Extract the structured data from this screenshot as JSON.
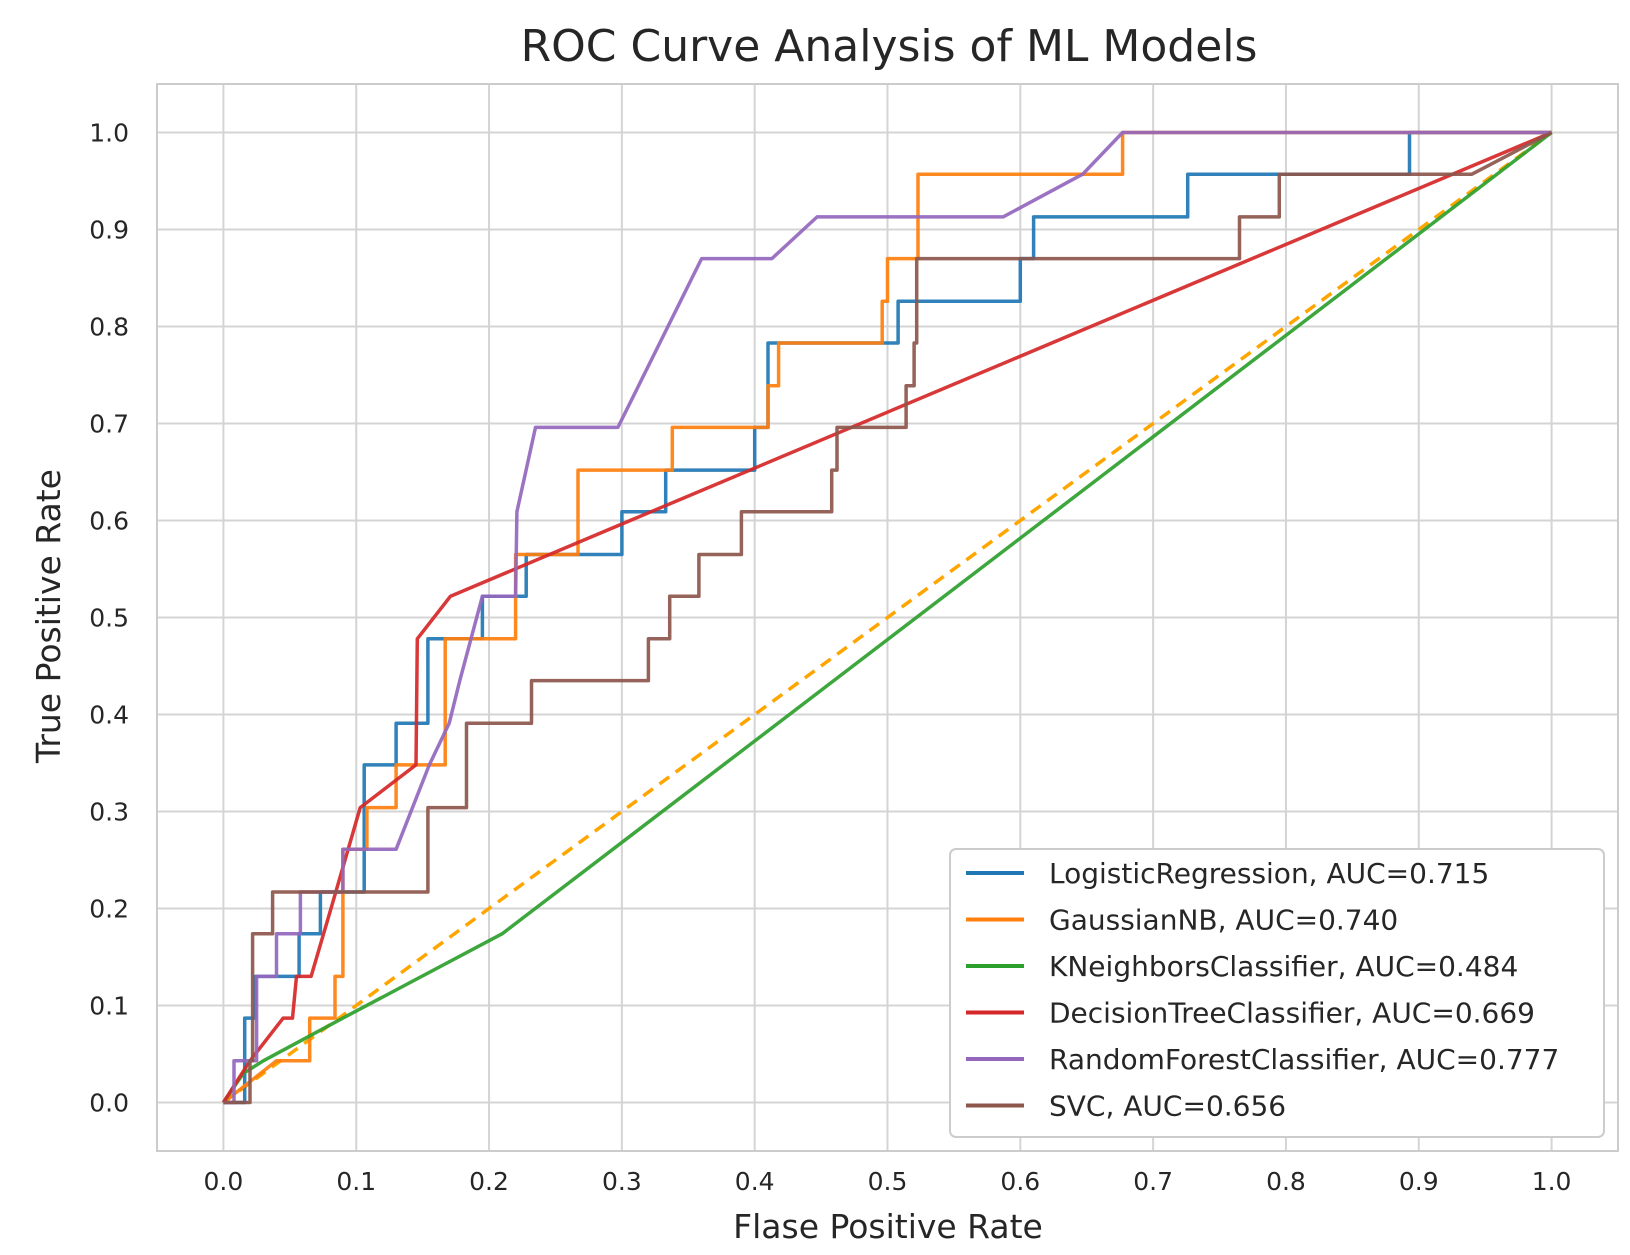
{
  "chart_data": {
    "type": "line",
    "title": "ROC Curve Analysis of ML Models",
    "xlabel": "Flase Positive Rate",
    "ylabel": "True Positive Rate",
    "xlim": [
      -0.05,
      1.05
    ],
    "ylim": [
      -0.05,
      1.05
    ],
    "x_ticks": [
      "0.0",
      "0.1",
      "0.2",
      "0.3",
      "0.4",
      "0.5",
      "0.6",
      "0.7",
      "0.8",
      "0.9",
      "1.0"
    ],
    "y_ticks": [
      "0.0",
      "0.1",
      "0.2",
      "0.3",
      "0.4",
      "0.5",
      "0.6",
      "0.7",
      "0.8",
      "0.9",
      "1.0"
    ],
    "grid": true,
    "legend_position": "lower-right",
    "series": [
      {
        "name": "LogisticRegression, AUC=0.715",
        "color": "#1f77b4",
        "x": [
          0.0,
          0.016,
          0.016,
          0.024,
          0.024,
          0.028,
          0.028,
          0.037,
          0.037,
          0.057,
          0.057,
          0.073,
          0.073,
          0.106,
          0.106,
          0.13,
          0.13,
          0.154,
          0.154,
          0.195,
          0.195,
          0.228,
          0.228,
          0.3,
          0.3,
          0.333,
          0.333,
          0.4,
          0.4,
          0.41,
          0.41,
          0.5,
          0.5,
          0.508,
          0.508,
          0.6,
          0.6,
          0.61,
          0.61,
          0.726,
          0.726,
          0.793,
          0.793,
          0.893,
          0.893,
          0.94,
          0.94,
          1.0
        ],
        "y": [
          0.0,
          0.0,
          0.087,
          0.087,
          0.13,
          0.13,
          0.13,
          0.13,
          0.13,
          0.13,
          0.174,
          0.174,
          0.217,
          0.217,
          0.348,
          0.348,
          0.391,
          0.391,
          0.478,
          0.478,
          0.522,
          0.522,
          0.565,
          0.565,
          0.609,
          0.609,
          0.652,
          0.652,
          0.696,
          0.696,
          0.783,
          0.783,
          0.783,
          0.783,
          0.826,
          0.826,
          0.87,
          0.87,
          0.913,
          0.913,
          0.957,
          0.957,
          0.957,
          0.957,
          1.0,
          1.0,
          1.0,
          1.0
        ]
      },
      {
        "name": "GaussianNB, AUC=0.740",
        "color": "#ff7f0e",
        "x": [
          0.0,
          0.04,
          0.065,
          0.065,
          0.07,
          0.07,
          0.084,
          0.084,
          0.09,
          0.09,
          0.108,
          0.108,
          0.13,
          0.13,
          0.16,
          0.16,
          0.167,
          0.167,
          0.22,
          0.22,
          0.267,
          0.267,
          0.338,
          0.338,
          0.4,
          0.4,
          0.41,
          0.41,
          0.418,
          0.418,
          0.496,
          0.496,
          0.5,
          0.5,
          0.523,
          0.523,
          0.677,
          0.677,
          1.0
        ],
        "y": [
          0.0,
          0.043,
          0.043,
          0.087,
          0.087,
          0.087,
          0.087,
          0.13,
          0.13,
          0.261,
          0.261,
          0.304,
          0.304,
          0.348,
          0.348,
          0.348,
          0.348,
          0.478,
          0.478,
          0.565,
          0.565,
          0.652,
          0.652,
          0.696,
          0.696,
          0.696,
          0.696,
          0.739,
          0.739,
          0.783,
          0.783,
          0.826,
          0.826,
          0.87,
          0.87,
          0.957,
          0.957,
          1.0,
          1.0
        ]
      },
      {
        "name": "KNeighborsClassifier, AUC=0.484",
        "color": "#2ca02c",
        "x": [
          0.0,
          0.015,
          0.03,
          0.09,
          0.21,
          1.0
        ],
        "y": [
          0.0,
          0.03,
          0.043,
          0.087,
          0.174,
          1.0
        ]
      },
      {
        "name": "DecisionTreeClassifier, AUC=0.669",
        "color": "#d62728",
        "x": [
          0.0,
          0.02,
          0.045,
          0.052,
          0.055,
          0.066,
          0.081,
          0.103,
          0.145,
          0.146,
          0.171,
          1.0
        ],
        "y": [
          0.0,
          0.043,
          0.087,
          0.087,
          0.13,
          0.13,
          0.2,
          0.304,
          0.348,
          0.478,
          0.522,
          1.0
        ]
      },
      {
        "name": "RandomForestClassifier, AUC=0.777",
        "color": "#9467bd",
        "x": [
          0.0,
          0.008,
          0.008,
          0.025,
          0.025,
          0.04,
          0.04,
          0.058,
          0.058,
          0.09,
          0.09,
          0.1,
          0.1,
          0.13,
          0.13,
          0.155,
          0.17,
          0.178,
          0.195,
          0.22,
          0.221,
          0.221,
          0.235,
          0.235,
          0.297,
          0.36,
          0.413,
          0.447,
          0.587,
          0.647,
          0.677,
          1.0
        ],
        "y": [
          0.0,
          0.0,
          0.043,
          0.043,
          0.13,
          0.13,
          0.174,
          0.174,
          0.217,
          0.217,
          0.261,
          0.261,
          0.261,
          0.261,
          0.261,
          0.348,
          0.391,
          0.435,
          0.522,
          0.522,
          0.609,
          0.609,
          0.696,
          0.696,
          0.696,
          0.87,
          0.87,
          0.913,
          0.913,
          0.957,
          1.0,
          1.0
        ]
      },
      {
        "name": "SVC, AUC=0.656",
        "color": "#8c564b",
        "x": [
          0.0,
          0.02,
          0.02,
          0.022,
          0.022,
          0.037,
          0.037,
          0.048,
          0.048,
          0.154,
          0.154,
          0.183,
          0.183,
          0.232,
          0.232,
          0.32,
          0.32,
          0.336,
          0.336,
          0.358,
          0.358,
          0.39,
          0.39,
          0.458,
          0.458,
          0.462,
          0.462,
          0.514,
          0.514,
          0.52,
          0.52,
          0.522,
          0.522,
          0.765,
          0.765,
          0.795,
          0.795,
          0.94,
          0.94,
          1.0
        ],
        "y": [
          0.0,
          0.0,
          0.043,
          0.043,
          0.174,
          0.174,
          0.217,
          0.217,
          0.217,
          0.217,
          0.304,
          0.304,
          0.391,
          0.391,
          0.435,
          0.435,
          0.478,
          0.478,
          0.522,
          0.522,
          0.565,
          0.565,
          0.609,
          0.609,
          0.652,
          0.652,
          0.696,
          0.696,
          0.739,
          0.739,
          0.783,
          0.783,
          0.87,
          0.87,
          0.913,
          0.913,
          0.957,
          0.957,
          0.957,
          1.0
        ]
      }
    ],
    "reference_line": {
      "name": "random-baseline",
      "color": "#ffa500",
      "style": "dashed",
      "x": [
        0.0,
        1.0
      ],
      "y": [
        0.0,
        1.0
      ]
    }
  }
}
